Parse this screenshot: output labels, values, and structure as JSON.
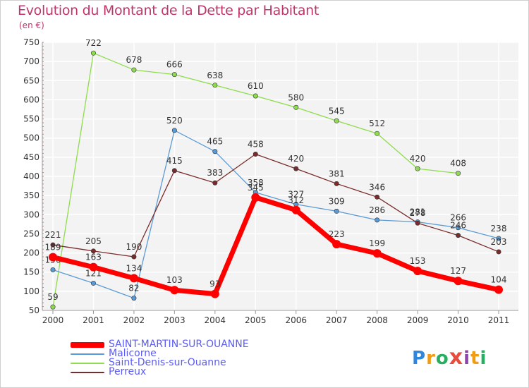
{
  "title": "Evolution du Montant de la Dette par Habitant",
  "unit_label": "(en €)",
  "logo_text": "Proxiti",
  "chart_data": {
    "type": "line",
    "title": "Evolution du Montant de la Dette par Habitant",
    "ylabel": "(en €)",
    "xlabel": "",
    "ylim": [
      50,
      750
    ],
    "yticks": [
      50,
      100,
      150,
      200,
      250,
      300,
      350,
      400,
      450,
      500,
      550,
      600,
      650,
      700,
      750
    ],
    "categories": [
      "2000",
      "2001",
      "2002",
      "2003",
      "2004",
      "2005",
      "2006",
      "2007",
      "2008",
      "2009",
      "2010",
      "2011"
    ],
    "grid": true,
    "legend_position": "bottom-left",
    "series": [
      {
        "name": "SAINT-MARTIN-SUR-OUANNE",
        "color": "#ff0000",
        "values": [
          189,
          163,
          134,
          103,
          93,
          345,
          312,
          223,
          199,
          153,
          127,
          104
        ]
      },
      {
        "name": "Malicorne",
        "color": "#5b9bd5",
        "values": [
          156,
          121,
          82,
          520,
          465,
          358,
          327,
          309,
          286,
          281,
          266,
          238
        ]
      },
      {
        "name": "Saint-Denis-sur-Ouanne",
        "color": "#8edc4c",
        "values": [
          59,
          722,
          678,
          666,
          638,
          610,
          580,
          545,
          512,
          420,
          408,
          null
        ]
      },
      {
        "name": "Perreux",
        "color": "#7b2b2b",
        "values": [
          221,
          205,
          190,
          415,
          383,
          458,
          420,
          381,
          346,
          278,
          246,
          203
        ]
      }
    ]
  }
}
